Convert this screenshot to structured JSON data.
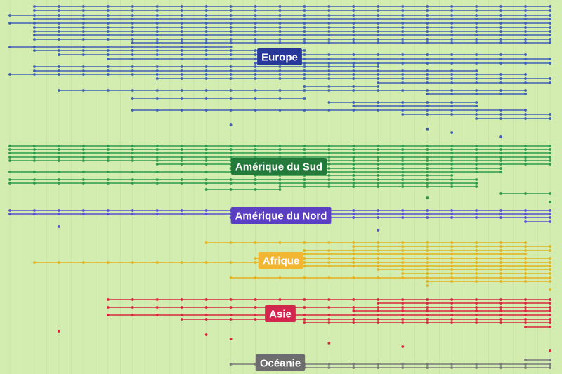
{
  "chart_data": {
    "type": "timeline",
    "x": [
      0,
      1,
      2,
      3,
      4,
      5,
      6,
      7,
      8,
      9,
      10,
      11,
      12,
      13,
      14,
      15,
      16,
      17,
      18,
      19,
      20,
      21,
      22
    ],
    "xlim": [
      0,
      22
    ],
    "grid": true,
    "background": "#d3ecb0",
    "groups": [
      {
        "name": "Europe",
        "color": "#3f5fb5",
        "label_color": "#27389a",
        "rows": [
          {
            "y": 9,
            "start": 1,
            "end": 22
          },
          {
            "y": 15,
            "start": 1,
            "end": 22
          },
          {
            "y": 22,
            "start": 0,
            "end": 22
          },
          {
            "y": 27,
            "start": 1,
            "end": 22
          },
          {
            "y": 33,
            "start": 0,
            "end": 22
          },
          {
            "y": 39,
            "start": 1,
            "end": 22
          },
          {
            "y": 45,
            "start": 1,
            "end": 22
          },
          {
            "y": 50,
            "start": 1,
            "end": 22
          },
          {
            "y": 56,
            "start": 1,
            "end": 22
          },
          {
            "y": 61,
            "start": 5,
            "end": 22
          },
          {
            "y": 67,
            "start": 0,
            "end": 9
          },
          {
            "y": 72,
            "start": 1,
            "end": 12
          },
          {
            "y": 78,
            "start": 2,
            "end": 21
          },
          {
            "y": 84,
            "start": 4,
            "end": 22
          },
          {
            "y": 90,
            "start": 10,
            "end": 22
          },
          {
            "y": 95,
            "start": 1,
            "end": 15
          },
          {
            "y": 101,
            "start": 1,
            "end": 19
          },
          {
            "y": 106,
            "start": 0,
            "end": 21
          },
          {
            "y": 112,
            "start": 6,
            "end": 22
          },
          {
            "y": 118,
            "start": 15,
            "end": 22
          },
          {
            "y": 123,
            "start": 12,
            "end": 15
          },
          {
            "y": 129,
            "start": 2,
            "end": 21
          },
          {
            "y": 134,
            "start": 17,
            "end": 21
          },
          {
            "y": 140,
            "start": 5,
            "end": 12
          },
          {
            "y": 146,
            "start": 13,
            "end": 19
          },
          {
            "y": 151,
            "start": 14,
            "end": 19
          },
          {
            "y": 157,
            "start": 5,
            "end": 21
          },
          {
            "y": 163,
            "start": 16,
            "end": 22
          },
          {
            "y": 169,
            "start": 19,
            "end": 22
          },
          {
            "y": 178,
            "start": 9,
            "end": 9
          },
          {
            "y": 184,
            "start": 17,
            "end": 17
          },
          {
            "y": 189,
            "start": 18,
            "end": 18
          },
          {
            "y": 195,
            "start": 20,
            "end": 20
          }
        ]
      },
      {
        "name": "Amérique du Sud",
        "color": "#2e9a4c",
        "label_color": "#237a3a",
        "rows": [
          {
            "y": 208,
            "start": 0,
            "end": 22
          },
          {
            "y": 213,
            "start": 0,
            "end": 22
          },
          {
            "y": 218,
            "start": 0,
            "end": 22
          },
          {
            "y": 224,
            "start": 0,
            "end": 22
          },
          {
            "y": 229,
            "start": 0,
            "end": 22
          },
          {
            "y": 234,
            "start": 6,
            "end": 22
          },
          {
            "y": 240,
            "start": 9,
            "end": 20
          },
          {
            "y": 245,
            "start": 0,
            "end": 20
          },
          {
            "y": 250,
            "start": 10,
            "end": 18
          },
          {
            "y": 256,
            "start": 0,
            "end": 19
          },
          {
            "y": 261,
            "start": 0,
            "end": 19
          },
          {
            "y": 266,
            "start": 11,
            "end": 19
          },
          {
            "y": 270,
            "start": 8,
            "end": 11
          },
          {
            "y": 276,
            "start": 20,
            "end": 22
          },
          {
            "y": 282,
            "start": 17,
            "end": 17
          },
          {
            "y": 288,
            "start": 22,
            "end": 22
          }
        ]
      },
      {
        "name": "Amérique du Nord",
        "color": "#5a4fd0",
        "label_color": "#5b3fc2",
        "rows": [
          {
            "y": 300,
            "start": 0,
            "end": 22
          },
          {
            "y": 305,
            "start": 0,
            "end": 22
          },
          {
            "y": 310,
            "start": 9,
            "end": 22
          },
          {
            "y": 316,
            "start": 21,
            "end": 22
          },
          {
            "y": 323,
            "start": 2,
            "end": 2
          },
          {
            "y": 328,
            "start": 15,
            "end": 15
          }
        ]
      },
      {
        "name": "Afrique",
        "color": "#e3b21f",
        "label_color": "#f2b632",
        "rows": [
          {
            "y": 346,
            "start": 8,
            "end": 21
          },
          {
            "y": 351,
            "start": 14,
            "end": 22
          },
          {
            "y": 357,
            "start": 12,
            "end": 22
          },
          {
            "y": 362,
            "start": 11,
            "end": 21
          },
          {
            "y": 368,
            "start": 10,
            "end": 22
          },
          {
            "y": 374,
            "start": 1,
            "end": 22
          },
          {
            "y": 379,
            "start": 12,
            "end": 22
          },
          {
            "y": 384,
            "start": 15,
            "end": 22
          },
          {
            "y": 390,
            "start": 16,
            "end": 22
          },
          {
            "y": 396,
            "start": 9,
            "end": 22
          },
          {
            "y": 401,
            "start": 17,
            "end": 22
          },
          {
            "y": 407,
            "start": 17,
            "end": 17
          },
          {
            "y": 413,
            "start": 22,
            "end": 22
          }
        ]
      },
      {
        "name": "Asie",
        "color": "#d7263d",
        "label_color": "#d2264f",
        "rows": [
          {
            "y": 427,
            "start": 4,
            "end": 22
          },
          {
            "y": 432,
            "start": 15,
            "end": 22
          },
          {
            "y": 438,
            "start": 4,
            "end": 22
          },
          {
            "y": 443,
            "start": 14,
            "end": 22
          },
          {
            "y": 449,
            "start": 4,
            "end": 22
          },
          {
            "y": 455,
            "start": 7,
            "end": 22
          },
          {
            "y": 460,
            "start": 12,
            "end": 22
          },
          {
            "y": 466,
            "start": 21,
            "end": 22
          },
          {
            "y": 472,
            "start": 2,
            "end": 2
          },
          {
            "y": 477,
            "start": 8,
            "end": 8
          },
          {
            "y": 483,
            "start": 9,
            "end": 9
          },
          {
            "y": 489,
            "start": 13,
            "end": 13
          },
          {
            "y": 494,
            "start": 16,
            "end": 16
          },
          {
            "y": 500,
            "start": 22,
            "end": 22
          }
        ]
      },
      {
        "name": "Océanie",
        "color": "#7a7a7a",
        "label_color": "#6d6d6d",
        "rows": [
          {
            "y": 513,
            "start": 21,
            "end": 22
          },
          {
            "y": 519,
            "start": 9,
            "end": 22
          },
          {
            "y": 524,
            "start": 12,
            "end": 22
          }
        ]
      }
    ]
  }
}
